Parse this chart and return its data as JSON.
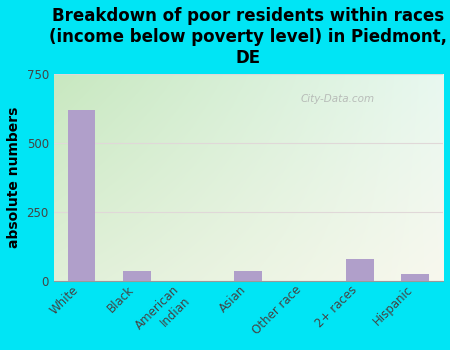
{
  "categories": [
    "White",
    "Black",
    "American\nIndian",
    "Asian",
    "Other race",
    "2+ races",
    "Hispanic"
  ],
  "values": [
    620,
    35,
    0,
    35,
    0,
    80,
    25
  ],
  "bar_color": "#b09fca",
  "title": "Breakdown of poor residents within races\n(income below poverty level) in Piedmont,\nDE",
  "ylabel": "absolute numbers",
  "ylim": [
    0,
    750
  ],
  "yticks": [
    0,
    250,
    500,
    750
  ],
  "background_outer": "#00e5f5",
  "grid_color": "#e0d8d8",
  "title_fontsize": 12,
  "ylabel_fontsize": 10,
  "tick_fontsize": 8.5,
  "watermark": "City-Data.com",
  "bg_colors_top": "#c8e8c0",
  "bg_colors_bottom": "#f8f8ee",
  "bg_colors_right": "#e8f8f0"
}
